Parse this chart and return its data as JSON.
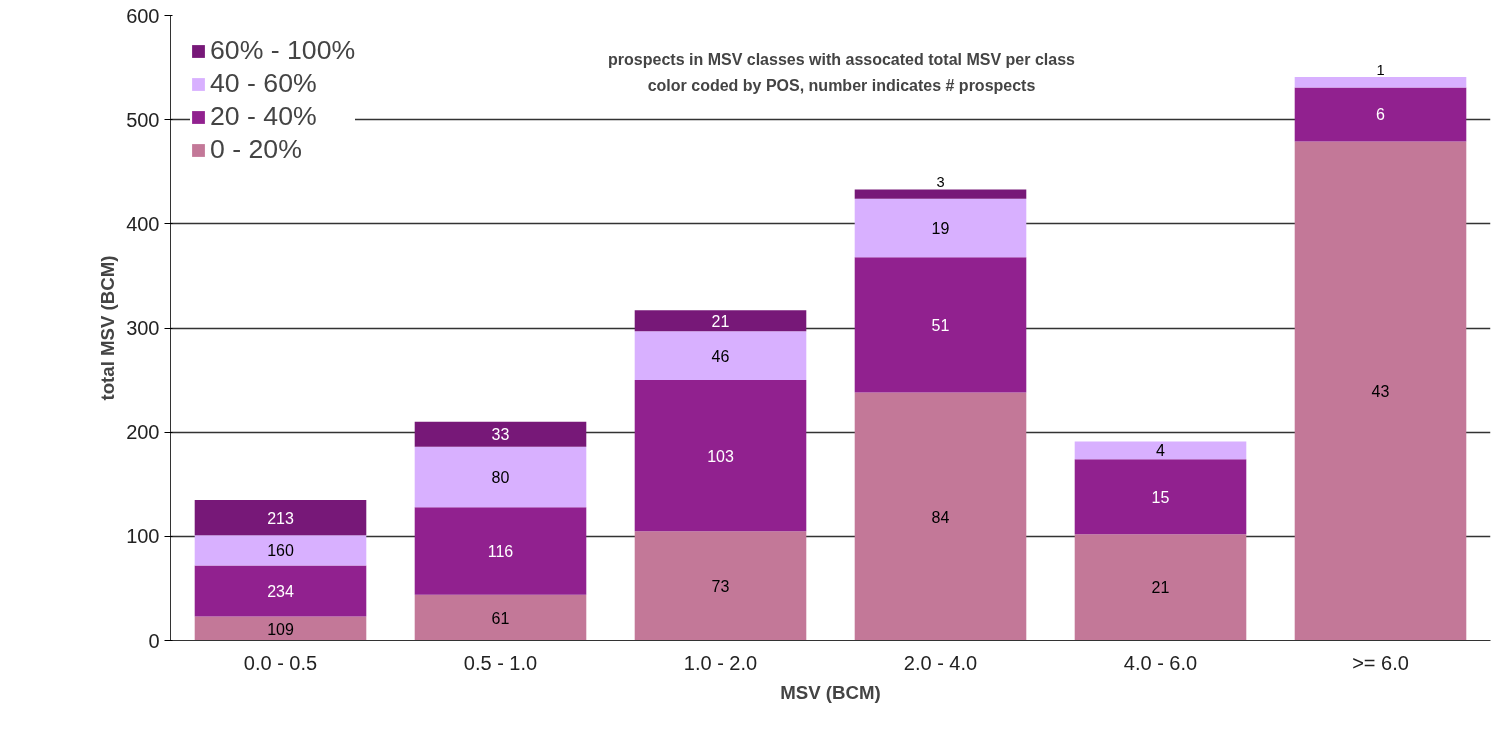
{
  "chart_data": {
    "type": "bar",
    "stacked": true,
    "title": "prospects in MSV classes with assocated total MSV per class",
    "subtitle": "color coded by POS, number indicates # prospects",
    "xlabel": "MSV (BCM)",
    "ylabel": "total MSV (BCM)",
    "categories": [
      "0.0 - 0.5",
      "0.5 - 1.0",
      "1.0 - 2.0",
      "2.0 - 4.0",
      "4.0 - 6.0",
      ">= 6.0"
    ],
    "series": [
      {
        "name": "0 - 20%",
        "color": "#c37898",
        "values": [
          23,
          44,
          105,
          238,
          102,
          479
        ]
      },
      {
        "name": "20 - 40%",
        "color": "#91218f",
        "values": [
          49,
          84,
          145,
          130,
          72,
          52
        ]
      },
      {
        "name": "40 - 60%",
        "color": "#d8b0ff",
        "values": [
          29,
          58,
          47,
          56,
          17,
          10
        ]
      },
      {
        "name": "60% - 100%",
        "color": "#771878",
        "values": [
          34,
          24,
          20,
          9,
          null,
          null
        ]
      }
    ],
    "annotations": [
      "109",
      "234",
      "160",
      "213",
      "61",
      "116",
      "80",
      "33",
      "73",
      "103",
      "46",
      "21",
      "84",
      "51",
      "19",
      "3",
      "21",
      "15",
      "4",
      "43",
      "6",
      "1"
    ],
    "ylim": [
      0,
      600
    ],
    "yticks": [
      0,
      100,
      200,
      300,
      400,
      500,
      600
    ],
    "grid": "y",
    "legend": "top left"
  }
}
